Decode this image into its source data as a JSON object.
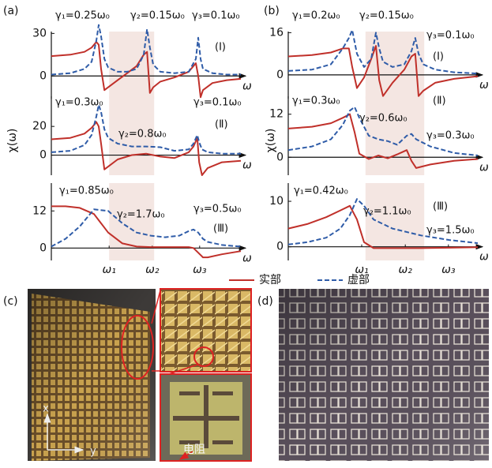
{
  "figure": {
    "panel_labels": [
      "(a)",
      "(b)",
      "(c)",
      "(d)"
    ],
    "y_label": "χ(ω)",
    "photo_labels": {
      "x": "x",
      "y": "y",
      "resistor": "电阻"
    }
  },
  "chart_data": [
    {
      "type": "line",
      "x_label": "ω",
      "xlim": [
        0,
        4
      ],
      "ylim": [
        -16,
        38
      ],
      "yticks": [
        0,
        30
      ],
      "span": [
        1.22,
        2.17
      ],
      "annotations": [
        "γ₁=0.25ω₀",
        "γ₂=0.15ω₀",
        "γ₃=0.1ω₀",
        "(Ⅰ)"
      ],
      "x": [
        0,
        0.4,
        0.7,
        0.85,
        0.95,
        1.0,
        1.05,
        1.12,
        1.2,
        1.4,
        1.6,
        1.8,
        1.95,
        2.02,
        2.08,
        2.15,
        2.3,
        2.6,
        2.9,
        3.05,
        3.1,
        3.15,
        3.2,
        3.4,
        3.7,
        4.0
      ],
      "series": [
        {
          "name": "实部",
          "color": "#c0302a",
          "dash": false,
          "values": [
            14,
            15,
            17,
            20,
            24,
            22,
            5,
            -10,
            -8,
            -3,
            2,
            7,
            15,
            17,
            -12,
            -8,
            -4,
            -1,
            3,
            9,
            0,
            -15,
            -10,
            -5,
            -3,
            -2
          ]
        },
        {
          "name": "虚部",
          "color": "#2f5ca8",
          "dash": true,
          "values": [
            1,
            2,
            5,
            10,
            25,
            36,
            28,
            12,
            6,
            3,
            3,
            5,
            15,
            33,
            20,
            8,
            3,
            2,
            3,
            12,
            27,
            12,
            5,
            2,
            1,
            1
          ]
        }
      ]
    },
    {
      "type": "line",
      "x_label": "ω",
      "xlim": [
        0,
        4
      ],
      "ylim": [
        -14,
        41
      ],
      "yticks": [
        0,
        20
      ],
      "span": [
        1.22,
        2.17
      ],
      "annotations": [
        "γ₁=0.3ω₀",
        "γ₂=0.8ω₀",
        "γ₃=0.1ω₀",
        "(Ⅱ)"
      ],
      "x": [
        0,
        0.4,
        0.7,
        0.85,
        0.95,
        1.0,
        1.05,
        1.12,
        1.2,
        1.4,
        1.7,
        2.0,
        2.3,
        2.6,
        2.9,
        3.0,
        3.08,
        3.12,
        3.18,
        3.3,
        3.6,
        4.0
      ],
      "series": [
        {
          "name": "实部",
          "color": "#c0302a",
          "dash": false,
          "values": [
            11,
            12,
            15,
            19,
            23,
            20,
            8,
            -10,
            -8,
            -3,
            0,
            1,
            -1,
            -2,
            2,
            6,
            12,
            -5,
            -14,
            -9,
            -5,
            -4
          ]
        },
        {
          "name": "虚部",
          "color": "#2f5ca8",
          "dash": true,
          "values": [
            2,
            3,
            7,
            14,
            27,
            35,
            30,
            18,
            12,
            8,
            6,
            6,
            5.5,
            3,
            4,
            8,
            14,
            9,
            4,
            2,
            1,
            1
          ]
        }
      ]
    },
    {
      "type": "line",
      "x_label": "ω",
      "xlim": [
        0,
        4
      ],
      "ylim": [
        -4,
        21
      ],
      "yticks": [
        0,
        12
      ],
      "span": [
        1.22,
        2.17
      ],
      "xticks": [
        {
          "value": 1.22,
          "label": "ω₁"
        },
        {
          "value": 2.13,
          "label": "ω₂"
        },
        {
          "value": 3.13,
          "label": "ω₃"
        }
      ],
      "annotations": [
        "γ₁=0.85ω₀",
        "γ₂=1.7ω₀",
        "γ₃=0.5ω₀",
        "(Ⅲ)"
      ],
      "x": [
        0,
        0.3,
        0.6,
        0.9,
        1.2,
        1.5,
        1.8,
        2.1,
        2.4,
        2.7,
        2.9,
        3.0,
        3.1,
        3.2,
        3.3,
        3.6,
        4.0
      ],
      "series": [
        {
          "name": "实部",
          "color": "#c0302a",
          "dash": false,
          "values": [
            13.5,
            13.5,
            13,
            11,
            5,
            1.5,
            0.5,
            0.3,
            0.3,
            0.3,
            0.3,
            0,
            -1.5,
            -3,
            -3,
            -2,
            -1
          ]
        },
        {
          "name": "虚部",
          "color": "#2f5ca8",
          "dash": true,
          "values": [
            0.5,
            3,
            7,
            12.5,
            12,
            8,
            5,
            4,
            3.5,
            4,
            5.5,
            6,
            5,
            3,
            2,
            1,
            0.5
          ]
        }
      ]
    },
    {
      "type": "line",
      "x_label": "ω",
      "xlim": [
        0,
        4
      ],
      "ylim": [
        -9,
        20
      ],
      "yticks": [
        0,
        16
      ],
      "span": [
        1.63,
        2.87
      ],
      "annotations": [
        "γ₁=0.2ω₀",
        "γ₂=0.15ω₀",
        "γ₃=0.1ω₀",
        "(Ⅰ)"
      ],
      "x": [
        0,
        0.5,
        0.9,
        1.15,
        1.28,
        1.35,
        1.45,
        1.6,
        1.75,
        1.85,
        1.92,
        2.0,
        2.2,
        2.45,
        2.6,
        2.68,
        2.75,
        2.85,
        3.1,
        3.5,
        4.0
      ],
      "series": [
        {
          "name": "实部",
          "color": "#c0302a",
          "dash": false,
          "values": [
            7,
            7.5,
            8.5,
            10,
            10,
            3,
            -5,
            -1,
            6,
            11,
            -2,
            -8,
            -3,
            2,
            7,
            8,
            -8,
            -6,
            -3,
            -1.5,
            -0.5
          ]
        },
        {
          "name": "虚部",
          "color": "#2f5ca8",
          "dash": true,
          "values": [
            1.5,
            2,
            4,
            10,
            14,
            17,
            8,
            3,
            6,
            16,
            10,
            5,
            3,
            4,
            9,
            14,
            8,
            4,
            2,
            1,
            0.5
          ]
        }
      ]
    },
    {
      "type": "line",
      "x_label": "ω",
      "xlim": [
        0,
        4
      ],
      "ylim": [
        -5,
        17
      ],
      "yticks": [
        0,
        12
      ],
      "span": [
        1.63,
        2.87
      ],
      "annotations": [
        "γ₁=0.3ω₀",
        "γ₂=0.6ω₀",
        "γ₃=0.3ω₀",
        "(Ⅱ)"
      ],
      "x": [
        0,
        0.5,
        0.9,
        1.15,
        1.3,
        1.4,
        1.5,
        1.7,
        1.9,
        2.1,
        2.3,
        2.5,
        2.6,
        2.7,
        3.0,
        3.5,
        4.0
      ],
      "series": [
        {
          "name": "实部",
          "color": "#c0302a",
          "dash": false,
          "values": [
            8,
            8.5,
            9.5,
            11,
            12,
            7,
            1,
            -0.5,
            0.5,
            -0.3,
            0.8,
            2,
            -1,
            -3,
            -2,
            -1,
            -0.5
          ]
        },
        {
          "name": "虚部",
          "color": "#2f5ca8",
          "dash": true,
          "values": [
            2,
            3,
            5,
            9,
            13,
            14,
            11,
            6,
            5,
            4.5,
            3.5,
            6,
            6.5,
            5,
            3,
            1.2,
            0.5
          ]
        }
      ]
    },
    {
      "type": "line",
      "x_label": "ω",
      "xlim": [
        0,
        4
      ],
      "ylim": [
        -3,
        14
      ],
      "yticks": [
        0,
        10
      ],
      "span": [
        1.63,
        2.87
      ],
      "xticks": [
        {
          "value": 1.55,
          "label": "ω₁"
        },
        {
          "value": 2.47,
          "label": "ω₂"
        },
        {
          "value": 3.38,
          "label": "ω₃"
        }
      ],
      "annotations": [
        "γ₁=0.42ω₀",
        "γ₂=1.1ω₀",
        "γ₃=1.5ω₀",
        "(Ⅲ)"
      ],
      "x": [
        0,
        0.4,
        0.8,
        1.1,
        1.3,
        1.45,
        1.6,
        1.8,
        2.2,
        2.8,
        3.4,
        4.0
      ],
      "series": [
        {
          "name": "实部",
          "color": "#c0302a",
          "dash": false,
          "values": [
            4,
            5,
            6.5,
            8,
            9,
            6,
            1,
            -0.3,
            -0.3,
            -0.3,
            -0.2,
            -0.1
          ]
        },
        {
          "name": "虚部",
          "color": "#2f5ca8",
          "dash": true,
          "values": [
            0.5,
            1,
            2,
            4,
            7,
            10.5,
            9,
            6,
            4,
            2.5,
            1.5,
            0.8
          ]
        }
      ]
    }
  ]
}
